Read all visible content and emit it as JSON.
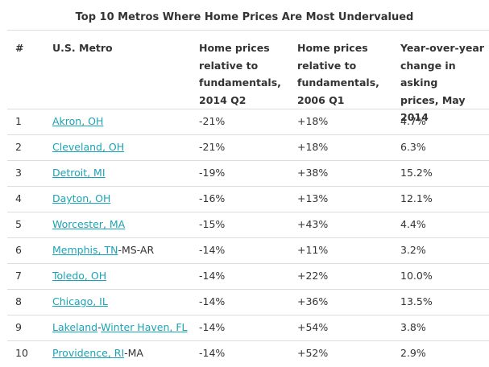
{
  "table": {
    "title": "Top 10 Metros Where Home Prices Are Most Undervalued",
    "headers": {
      "num": "#",
      "metro": "U.S. Metro",
      "rel2014": [
        "Home prices",
        "relative to",
        "fundamentals,",
        "2014 Q2"
      ],
      "rel2006": [
        "Home prices",
        "relative to",
        "fundamentals,",
        "2006 Q1"
      ],
      "yoy": [
        "Year-over-year",
        "change in asking",
        "prices, May 2014"
      ]
    },
    "rows": [
      {
        "num": "1",
        "metro_parts": [
          {
            "text": "Akron, OH",
            "link": true
          }
        ],
        "rel2014": "-21%",
        "rel2006": "+18%",
        "yoy": "4.7%"
      },
      {
        "num": "2",
        "metro_parts": [
          {
            "text": "Cleveland, OH",
            "link": true
          }
        ],
        "rel2014": "-21%",
        "rel2006": "+18%",
        "yoy": "6.3%"
      },
      {
        "num": "3",
        "metro_parts": [
          {
            "text": "Detroit, MI",
            "link": true
          }
        ],
        "rel2014": "-19%",
        "rel2006": "+38%",
        "yoy": "15.2%"
      },
      {
        "num": "4",
        "metro_parts": [
          {
            "text": "Dayton, OH",
            "link": true
          }
        ],
        "rel2014": "-16%",
        "rel2006": "+13%",
        "yoy": "12.1%"
      },
      {
        "num": "5",
        "metro_parts": [
          {
            "text": "Worcester, MA",
            "link": true
          }
        ],
        "rel2014": "-15%",
        "rel2006": "+43%",
        "yoy": "4.4%"
      },
      {
        "num": "6",
        "metro_parts": [
          {
            "text": "Memphis, TN",
            "link": true
          },
          {
            "text": "-MS-AR",
            "link": false
          }
        ],
        "rel2014": "-14%",
        "rel2006": "+11%",
        "yoy": "3.2%"
      },
      {
        "num": "7",
        "metro_parts": [
          {
            "text": "Toledo, OH",
            "link": true
          }
        ],
        "rel2014": "-14%",
        "rel2006": "+22%",
        "yoy": "10.0%"
      },
      {
        "num": "8",
        "metro_parts": [
          {
            "text": "Chicago, IL",
            "link": true
          }
        ],
        "rel2014": "-14%",
        "rel2006": "+36%",
        "yoy": "13.5%"
      },
      {
        "num": "9",
        "metro_parts": [
          {
            "text": "Lakeland",
            "link": true
          },
          {
            "text": "-",
            "link": false
          },
          {
            "text": "Winter Haven, FL",
            "link": true
          }
        ],
        "rel2014": "-14%",
        "rel2006": "+54%",
        "yoy": "3.8%"
      },
      {
        "num": "10",
        "metro_parts": [
          {
            "text": "Providence, RI",
            "link": true
          },
          {
            "text": "-MA",
            "link": false
          }
        ],
        "rel2014": "-14%",
        "rel2006": "+52%",
        "yoy": "2.9%"
      }
    ],
    "colors": {
      "link": "#1aa3b5",
      "text": "#333333",
      "rule": "#dddddd"
    }
  }
}
